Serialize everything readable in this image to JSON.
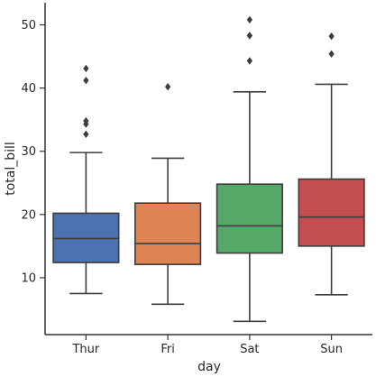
{
  "chart_data": {
    "type": "box",
    "xlabel": "day",
    "ylabel": "total_bill",
    "categories": [
      "Thur",
      "Fri",
      "Sat",
      "Sun"
    ],
    "ylim": [
      1,
      53.5
    ],
    "yticks": [
      10,
      20,
      30,
      40,
      50
    ],
    "grid": false,
    "legend": "none",
    "colors": [
      "#4c72b0",
      "#dd8452",
      "#55a868",
      "#c44e52"
    ],
    "boxes": [
      {
        "category": "Thur",
        "whisker_low": 7.5,
        "q1": 12.4,
        "median": 16.2,
        "q3": 20.2,
        "whisker_high": 29.8,
        "outliers": [
          32.7,
          34.3,
          34.8,
          41.2,
          43.1
        ]
      },
      {
        "category": "Fri",
        "whisker_low": 5.8,
        "q1": 12.1,
        "median": 15.4,
        "q3": 21.8,
        "whisker_high": 28.9,
        "outliers": [
          40.2
        ]
      },
      {
        "category": "Sat",
        "whisker_low": 3.1,
        "q1": 13.9,
        "median": 18.2,
        "q3": 24.8,
        "whisker_high": 39.4,
        "outliers": [
          44.3,
          48.3,
          48.3,
          50.8
        ]
      },
      {
        "category": "Sun",
        "whisker_low": 7.3,
        "q1": 15.0,
        "median": 19.6,
        "q3": 25.6,
        "whisker_high": 40.6,
        "outliers": [
          45.4,
          48.2
        ]
      }
    ]
  }
}
